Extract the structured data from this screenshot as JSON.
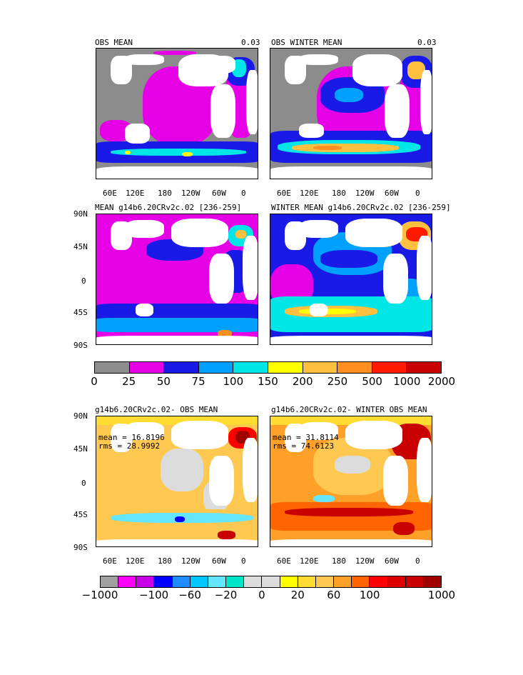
{
  "panels": {
    "p1": {
      "title": "OBS MEAN",
      "right": "0.03"
    },
    "p2": {
      "title": "OBS WINTER MEAN",
      "right": "0.03"
    },
    "p3": {
      "title": "MEAN g14b6.20CRv2c.02 [236-259]"
    },
    "p4": {
      "title": "WINTER MEAN g14b6.20CRv2c.02 [236-259]"
    },
    "p5": {
      "title": "g14b6.20CRv2c.02- OBS MEAN",
      "mean": "mean = 16.8196",
      "rms": "rms = 28.9992"
    },
    "p6": {
      "title": "g14b6.20CRv2c.02- WINTER OBS MEAN",
      "mean": "mean = 31.8114",
      "rms": "rms = 74.6123"
    }
  },
  "axes": {
    "lon_labels": [
      "60E",
      "120E",
      "180",
      "120W",
      "60W",
      "0"
    ],
    "lat_labels": [
      "90N",
      "45N",
      "0",
      "45S",
      "90S"
    ]
  },
  "colorbar1": {
    "colors": [
      "#8c8c8c",
      "#e600e6",
      "#1a1ae6",
      "#00a0ff",
      "#00e6e6",
      "#ffff00",
      "#ffc040",
      "#ff9020",
      "#ff1a00",
      "#c80000"
    ],
    "labels": [
      "0",
      "25",
      "50",
      "75",
      "100",
      "150",
      "200",
      "250",
      "500",
      "1000",
      "2000"
    ]
  },
  "colorbar2": {
    "colors": [
      "#a0a0a0",
      "#ff00ff",
      "#c800e6",
      "#0000ff",
      "#1e8cff",
      "#00c8ff",
      "#64e6ff",
      "#00e6c8",
      "#dcdcdc",
      "#dcdcdc",
      "#ffff00",
      "#ffdc32",
      "#ffc850",
      "#ffa028",
      "#ff6400",
      "#ff0000",
      "#dc0000",
      "#c80000",
      "#a00000"
    ],
    "labels": [
      "−1000",
      "−100",
      "−60",
      "−20",
      "0",
      "20",
      "60",
      "100",
      "1000"
    ]
  }
}
